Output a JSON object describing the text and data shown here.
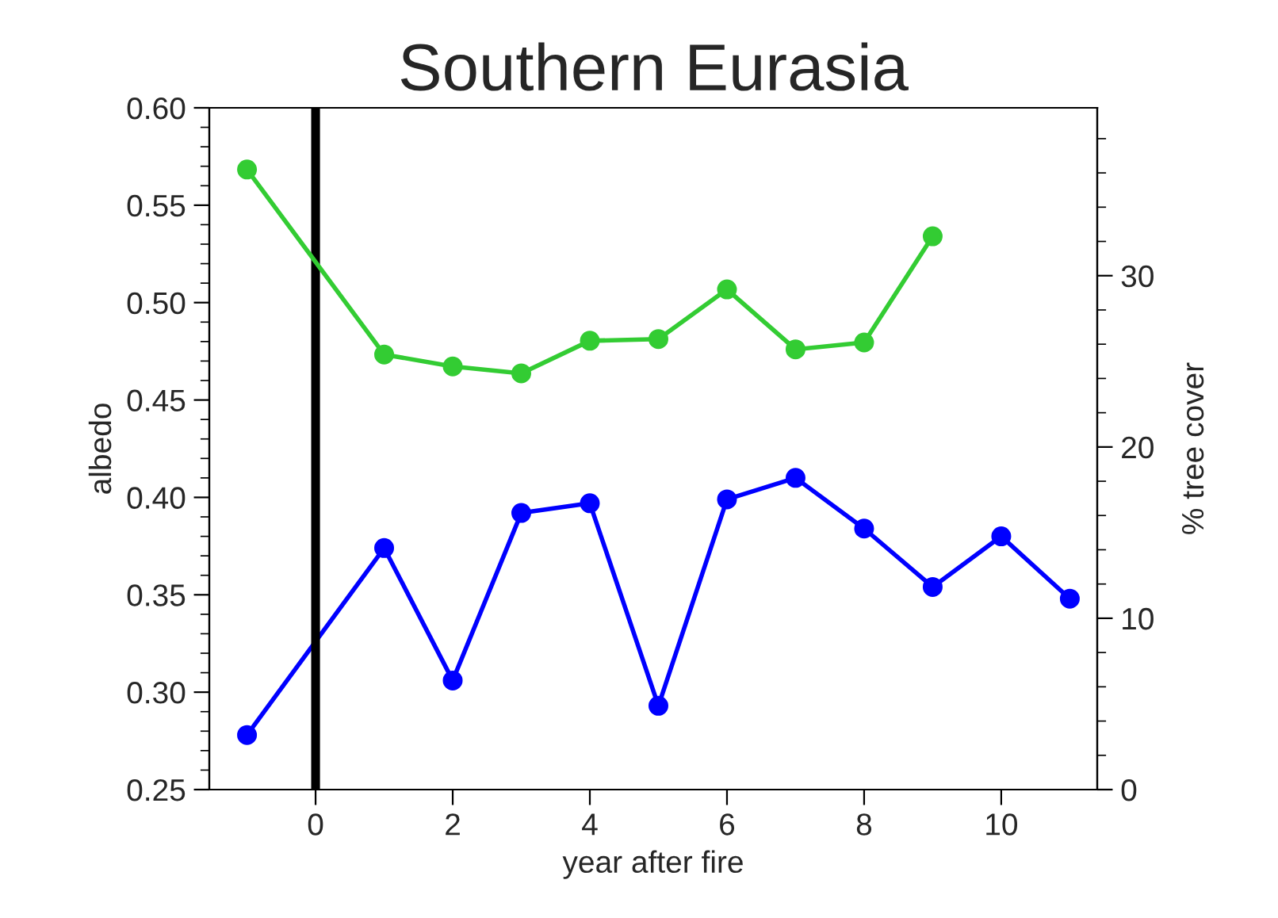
{
  "chart_data": {
    "type": "line",
    "title": "Southern Eurasia",
    "xlabel": "year after fire",
    "ylabel": "albedo",
    "y2label": "% tree cover",
    "x": [
      -1,
      1,
      2,
      3,
      4,
      5,
      6,
      7,
      8,
      9,
      10,
      11
    ],
    "series": [
      {
        "color": "#0000ff",
        "values": [
          0.278,
          0.374,
          0.306,
          0.392,
          0.397,
          0.293,
          0.399,
          0.41,
          0.384,
          0.354,
          0.38,
          0.348
        ]
      },
      {
        "color": "#33cc33",
        "axis": "y2",
        "x": [
          -1,
          1,
          2,
          3,
          4,
          5,
          6,
          7,
          8,
          9
        ],
        "values": [
          36.2,
          25.4,
          24.7,
          24.3,
          26.2,
          26.3,
          29.2,
          25.7,
          26.1,
          32.3
        ]
      }
    ],
    "xlim": [
      -1.55,
      11.4
    ],
    "xticks": [
      0,
      2,
      4,
      6,
      8,
      10
    ],
    "ylim": [
      0.25,
      0.6
    ],
    "yticks": [
      {
        "value": 0.25,
        "label": "0.25"
      },
      {
        "value": 0.3,
        "label": "0.30"
      },
      {
        "value": 0.35,
        "label": "0.35"
      },
      {
        "value": 0.4,
        "label": "0.40"
      },
      {
        "value": 0.45,
        "label": "0.45"
      },
      {
        "value": 0.5,
        "label": "0.50"
      },
      {
        "value": 0.55,
        "label": "0.55"
      },
      {
        "value": 0.6,
        "label": "0.60"
      }
    ],
    "y2lim": [
      0,
      39.8
    ],
    "y2ticks": [
      0,
      10,
      20,
      30
    ],
    "ref_lines": [
      {
        "axis": "x",
        "value": 0,
        "color": "#000000"
      }
    ],
    "marker": "circle",
    "line_style": "solid",
    "grid": false,
    "legend": false
  }
}
